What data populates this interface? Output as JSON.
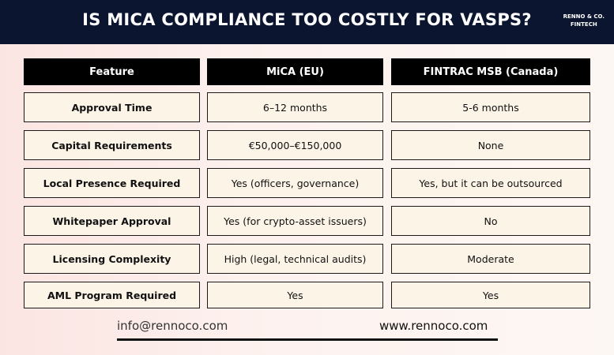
{
  "header": {
    "title": "IS MICA COMPLIANCE TOO COSTLY FOR VASPS?",
    "brand_line1": "RENNO & CO.",
    "brand_line2": "FINTECH"
  },
  "table": {
    "columns": [
      "Feature",
      "MiCA (EU)",
      "FINTRAC MSB (Canada)"
    ],
    "rows": [
      {
        "feature": "Approval Time",
        "mica": "6–12 months",
        "fintrac": "5-6 months"
      },
      {
        "feature": "Capital Requirements",
        "mica": "€50,000–€150,000",
        "fintrac": "None"
      },
      {
        "feature": "Local Presence Required",
        "mica": "Yes (officers, governance)",
        "fintrac": "Yes, but it can be outsourced"
      },
      {
        "feature": "Whitepaper Approval",
        "mica": "Yes (for crypto-asset issuers)",
        "fintrac": "No"
      },
      {
        "feature": "Licensing Complexity",
        "mica": "High (legal, technical audits)",
        "fintrac": "Moderate"
      },
      {
        "feature": "AML Program Required",
        "mica": "Yes",
        "fintrac": "Yes"
      }
    ]
  },
  "footer": {
    "email": "info@rennoco.com",
    "website": "www.rennoco.com"
  },
  "colors": {
    "header_bg": "#0b1530",
    "table_header_bg": "#000000",
    "cell_bg": "#fdf4e8"
  }
}
